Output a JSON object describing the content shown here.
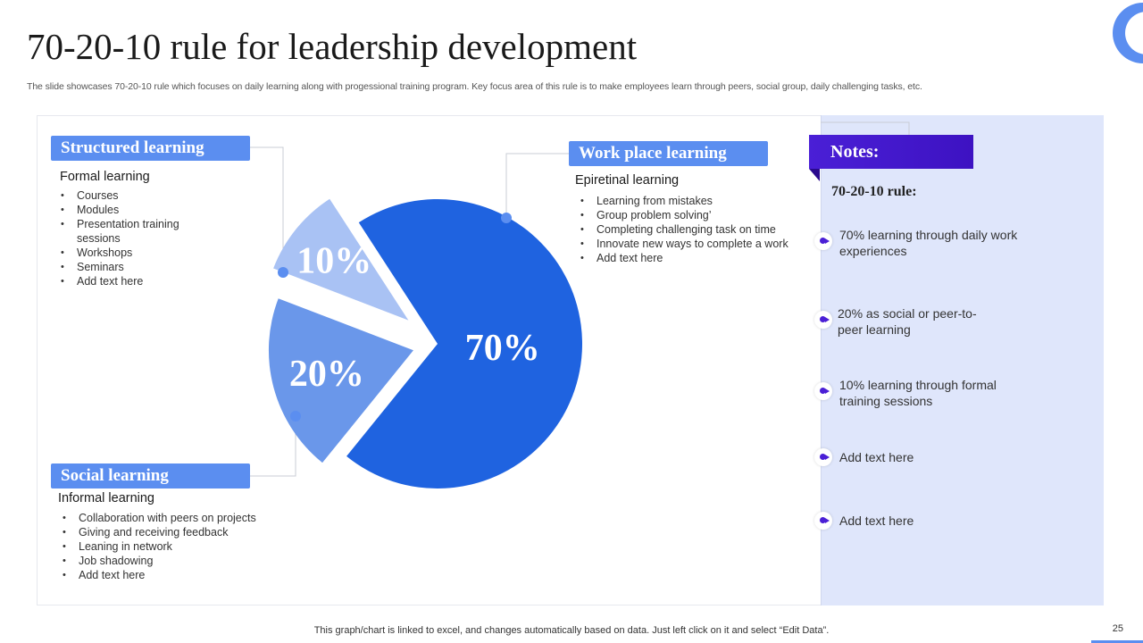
{
  "header": {
    "title": "70-20-10 rule for leadership development",
    "subtitle": "The slide showcases 70-20-10 rule which focuses on daily learning along with progessional training program. Key focus area of this rule is to  make employees learn through peers, social group, daily challenging tasks, etc."
  },
  "structured": {
    "label": "Structured  learning",
    "subhead": "Formal learning",
    "items": [
      "Courses",
      "Modules",
      "Presentation training sessions",
      "Workshops",
      "Seminars",
      "Add text here"
    ]
  },
  "workplace": {
    "label": "Work place learning",
    "subhead": "Epiretinal learning",
    "items": [
      "Learning from mistakes",
      "Group problem  solving’",
      "Completing  challenging task on time",
      "Innovate  new ways to complete a work",
      "Add text here"
    ]
  },
  "social": {
    "label": "Social learning",
    "subhead": "Informal learning",
    "items": [
      "Collaboration  with peers on projects",
      "Giving and receiving  feedback",
      "Leaning  in network",
      "Job shadowing",
      "Add text here"
    ]
  },
  "chart_data": {
    "type": "pie",
    "slices": [
      {
        "label": "70%",
        "value": 70,
        "color": "#1f63e0"
      },
      {
        "label": "20%",
        "value": 20,
        "color": "#6a97ea"
      },
      {
        "label": "10%",
        "value": 10,
        "color": "#a9c2f4"
      }
    ]
  },
  "notes": {
    "heading": "Notes:",
    "rule_title": "70-20-10 rule:",
    "items": [
      "70% learning through daily work  experiences",
      "20% as social or peer-to-peer learning",
      "10% learning  through formal training sessions",
      "Add text here",
      "Add text here"
    ]
  },
  "footer": {
    "text": "This graph/chart is linked to excel,  and changes automatically based on data. Just left click on it and select “Edit Data”.",
    "page_number": "25"
  },
  "colors": {
    "accent": "#5b8ef0",
    "notes_header": "#4a1fd6",
    "notes_bg": "#dfe6fb"
  }
}
